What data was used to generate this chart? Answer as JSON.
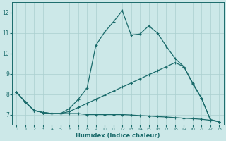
{
  "xlabel": "Humidex (Indice chaleur)",
  "bg_color": "#cce8e8",
  "line_color": "#1a6b6b",
  "grid_color": "#aacfcf",
  "xlim": [
    -0.5,
    23.5
  ],
  "ylim": [
    6.5,
    12.5
  ],
  "xticks": [
    0,
    1,
    2,
    3,
    4,
    5,
    6,
    7,
    8,
    9,
    10,
    11,
    12,
    13,
    14,
    15,
    16,
    17,
    18,
    19,
    20,
    21,
    22,
    23
  ],
  "yticks": [
    7,
    8,
    9,
    10,
    11,
    12
  ],
  "line1_x": [
    0,
    1,
    2,
    3,
    4,
    5,
    6,
    7,
    8,
    9,
    10,
    11,
    12,
    13,
    14,
    15,
    16,
    17,
    18,
    19,
    20,
    21,
    22,
    23
  ],
  "line1_y": [
    8.1,
    7.6,
    7.2,
    7.1,
    7.05,
    7.05,
    7.3,
    7.75,
    8.3,
    10.4,
    11.05,
    11.55,
    12.1,
    10.9,
    10.95,
    11.35,
    11.0,
    10.35,
    9.75,
    9.35,
    8.5,
    7.8,
    6.75,
    6.65
  ],
  "line2_x": [
    0,
    1,
    2,
    3,
    4,
    5,
    6,
    7,
    8,
    9,
    10,
    11,
    12,
    13,
    14,
    15,
    16,
    17,
    18,
    19,
    20,
    21,
    22,
    23
  ],
  "line2_y": [
    8.1,
    7.6,
    7.2,
    7.1,
    7.05,
    7.05,
    7.15,
    7.35,
    7.55,
    7.75,
    7.95,
    8.15,
    8.35,
    8.55,
    8.75,
    8.95,
    9.15,
    9.35,
    9.55,
    9.35,
    8.55,
    7.8,
    6.75,
    6.65
  ],
  "line3_x": [
    0,
    1,
    2,
    3,
    4,
    5,
    6,
    7,
    8,
    9,
    10,
    11,
    12,
    13,
    14,
    15,
    16,
    17,
    18,
    19,
    20,
    21,
    22,
    23
  ],
  "line3_y": [
    8.1,
    7.6,
    7.2,
    7.1,
    7.05,
    7.05,
    7.05,
    7.05,
    7.0,
    7.0,
    7.0,
    7.0,
    7.0,
    6.98,
    6.95,
    6.93,
    6.9,
    6.88,
    6.85,
    6.82,
    6.8,
    6.77,
    6.72,
    6.65
  ]
}
